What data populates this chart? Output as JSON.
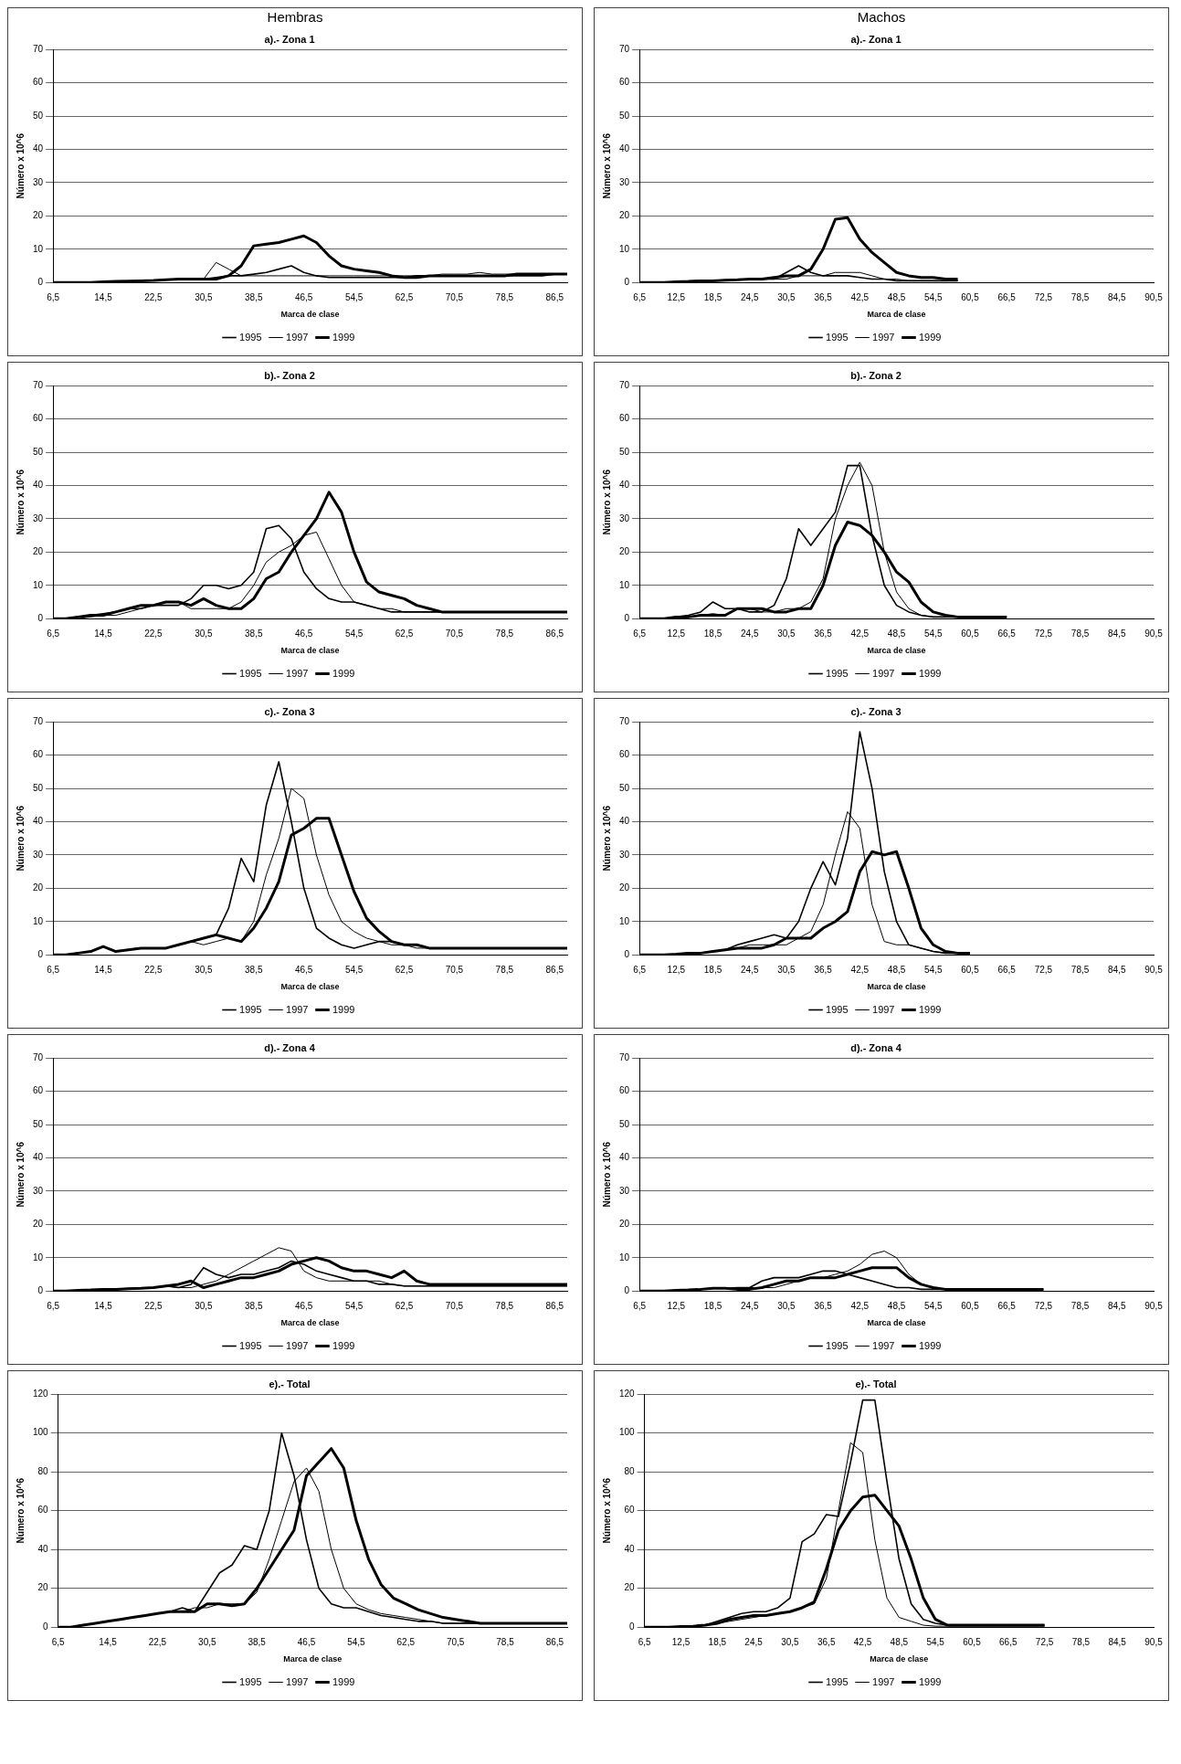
{
  "chart_data": [
    {
      "type": "line",
      "title": "a).- Zona 1",
      "xlabel": "Marca de clase",
      "ylabel": "Número x 10^6",
      "annotations": [
        "Hembras"
      ],
      "legend": "bottom",
      "grid": "y",
      "ylim": [
        0,
        70
      ],
      "yticks": [
        0,
        10,
        20,
        30,
        40,
        50,
        60,
        70
      ],
      "categories": [
        "6,5",
        null,
        null,
        null,
        "14,5",
        null,
        null,
        null,
        "22,5",
        null,
        null,
        null,
        "30,5",
        null,
        null,
        null,
        "38,5",
        null,
        null,
        null,
        "46,5",
        null,
        null,
        null,
        "54,5",
        null,
        null,
        null,
        "62,5",
        null,
        null,
        null,
        "70,5",
        null,
        null,
        null,
        "78,5",
        null,
        null,
        null,
        "86,5",
        null
      ],
      "series": [
        {
          "name": "1995",
          "color": "#000000",
          "values": [
            0,
            0,
            0,
            0,
            0.2,
            0.3,
            0.4,
            0.5,
            0.6,
            0.8,
            1,
            1,
            1,
            1.5,
            2,
            2,
            2.5,
            3,
            4,
            5,
            3,
            2,
            1.5,
            1.5,
            1.5,
            1.5,
            1.5,
            1.5,
            1.5,
            2,
            2,
            2,
            2,
            2,
            2,
            2,
            2,
            2,
            2,
            2,
            2.5,
            2.5
          ]
        },
        {
          "name": "1997",
          "color": "#000000",
          "values": [
            0,
            0,
            0,
            0,
            0.2,
            0.3,
            0.4,
            0.5,
            0.6,
            0.8,
            1,
            1,
            1,
            6,
            4,
            2,
            2,
            2,
            2,
            2,
            2,
            2,
            2,
            2,
            2,
            2,
            2,
            2,
            2,
            2,
            2,
            2.5,
            2.5,
            2.5,
            3,
            2.5,
            2.5,
            2.5,
            2.5,
            2.5,
            2.5,
            2.5
          ]
        },
        {
          "name": "1999",
          "color": "#000000",
          "values": [
            0,
            0,
            0,
            0,
            0.2,
            0.3,
            0.4,
            0.5,
            0.6,
            0.8,
            1,
            1,
            1,
            1,
            2,
            5,
            11,
            11.5,
            12,
            13,
            14,
            12,
            8,
            5,
            4,
            3.5,
            3,
            2,
            1.5,
            1.5,
            2,
            2,
            2,
            2,
            2,
            2,
            2,
            2.5,
            2.5,
            2.5,
            2.5,
            2.5
          ]
        }
      ]
    },
    {
      "type": "line",
      "title": "a).- Zona 1",
      "xlabel": "Marca de clase",
      "ylabel": "Número x 10^6",
      "annotations": [
        "Machos"
      ],
      "legend": "bottom",
      "grid": "y",
      "ylim": [
        0,
        70
      ],
      "yticks": [
        0,
        10,
        20,
        30,
        40,
        50,
        60,
        70
      ],
      "categories": [
        "6,5",
        null,
        null,
        "12,5",
        null,
        null,
        "18,5",
        null,
        null,
        "24,5",
        null,
        null,
        "30,5",
        null,
        null,
        "36,5",
        null,
        null,
        "42,5",
        null,
        null,
        "48,5",
        null,
        null,
        "54,5",
        null,
        null,
        "60,5",
        null,
        null,
        "66,5",
        null,
        null,
        "72,5",
        null,
        null,
        "78,5",
        null,
        null,
        "84,5",
        null,
        null,
        "90,5"
      ],
      "series": [
        {
          "name": "1995",
          "color": "#000000",
          "values": [
            0,
            0,
            0,
            0.2,
            0.3,
            0.5,
            0.5,
            0.7,
            0.8,
            1,
            1,
            1,
            3,
            5,
            3,
            2,
            2,
            2,
            1.5,
            1,
            1,
            0.5,
            0.5,
            0.5,
            0.5,
            0.5,
            0.5,
            null,
            null,
            null,
            null,
            null,
            null,
            null,
            null,
            null,
            null,
            null,
            null,
            null,
            null,
            null,
            null
          ]
        },
        {
          "name": "1997",
          "color": "#000000",
          "values": [
            0,
            0,
            0,
            0.2,
            0.3,
            0.5,
            0.5,
            0.7,
            0.8,
            1,
            1,
            1,
            1,
            2,
            2,
            2,
            3,
            3,
            3,
            2,
            1,
            1,
            0.5,
            0.5,
            0.5,
            0.5,
            0.5,
            null,
            null,
            null,
            null,
            null,
            null,
            null,
            null,
            null,
            null,
            null,
            null,
            null,
            null,
            null,
            null
          ]
        },
        {
          "name": "1999",
          "color": "#000000",
          "values": [
            0,
            0,
            0,
            0.2,
            0.3,
            0.5,
            0.5,
            0.7,
            0.8,
            1,
            1,
            1.5,
            2,
            2,
            4,
            10,
            19,
            19.5,
            13,
            9,
            6,
            3,
            2,
            1.5,
            1.5,
            1,
            1,
            null,
            null,
            null,
            null,
            null,
            null,
            null,
            null,
            null,
            null,
            null,
            null,
            null,
            null,
            null,
            null
          ]
        }
      ]
    },
    {
      "type": "line",
      "title": "b).- Zona 2",
      "xlabel": "Marca de clase",
      "ylabel": "Número x 10^6",
      "legend": "bottom",
      "grid": "y",
      "ylim": [
        0,
        70
      ],
      "yticks": [
        0,
        10,
        20,
        30,
        40,
        50,
        60,
        70
      ],
      "categories": [
        "6,5",
        null,
        null,
        null,
        "14,5",
        null,
        null,
        null,
        "22,5",
        null,
        null,
        null,
        "30,5",
        null,
        null,
        null,
        "38,5",
        null,
        null,
        null,
        "46,5",
        null,
        null,
        null,
        "54,5",
        null,
        null,
        null,
        "62,5",
        null,
        null,
        null,
        "70,5",
        null,
        null,
        null,
        "78,5",
        null,
        null,
        null,
        "86,5",
        null
      ],
      "series": [
        {
          "name": "1995",
          "color": "#000000",
          "values": [
            0,
            0,
            0.5,
            1,
            1.5,
            2,
            3,
            3,
            4,
            4,
            4,
            6,
            10,
            10,
            9,
            10,
            14,
            27,
            28,
            24,
            14,
            9,
            6,
            5,
            5,
            4,
            3,
            2,
            2,
            2,
            2,
            2,
            2,
            2,
            2,
            2,
            2,
            2,
            2,
            2,
            2,
            2
          ]
        },
        {
          "name": "1997",
          "color": "#000000",
          "values": [
            0,
            0,
            0,
            0.5,
            1,
            1,
            2,
            3,
            4,
            5,
            5,
            3,
            3,
            3,
            3,
            5,
            10,
            17,
            20,
            22,
            25,
            26,
            18,
            10,
            5,
            4,
            3,
            3,
            2,
            2,
            2,
            2,
            2,
            2,
            2,
            2,
            2,
            2,
            2,
            2,
            2,
            2
          ]
        },
        {
          "name": "1999",
          "color": "#000000",
          "values": [
            0,
            0,
            0.5,
            1,
            1,
            2,
            3,
            4,
            4,
            5,
            5,
            4,
            6,
            4,
            3,
            3,
            6,
            12,
            14,
            20,
            25,
            30,
            38,
            32,
            20,
            11,
            8,
            7,
            6,
            4,
            3,
            2,
            2,
            2,
            2,
            2,
            2,
            2,
            2,
            2,
            2,
            2
          ]
        }
      ]
    },
    {
      "type": "line",
      "title": "b).- Zona 2",
      "xlabel": "Marca de clase",
      "ylabel": "Número x 10^6",
      "legend": "bottom",
      "grid": "y",
      "ylim": [
        0,
        70
      ],
      "yticks": [
        0,
        10,
        20,
        30,
        40,
        50,
        60,
        70
      ],
      "categories": [
        "6,5",
        null,
        null,
        "12,5",
        null,
        null,
        "18,5",
        null,
        null,
        "24,5",
        null,
        null,
        "30,5",
        null,
        null,
        "36,5",
        null,
        null,
        "42,5",
        null,
        null,
        "48,5",
        null,
        null,
        "54,5",
        null,
        null,
        "60,5",
        null,
        null,
        "66,5",
        null,
        null,
        "72,5",
        null,
        null,
        "78,5",
        null,
        null,
        "84,5",
        null,
        null,
        "90,5"
      ],
      "series": [
        {
          "name": "1995",
          "color": "#000000",
          "values": [
            0,
            0,
            0,
            0.5,
            1,
            2,
            5,
            3,
            3,
            2,
            2,
            4,
            12,
            27,
            22,
            27,
            32,
            46,
            46,
            25,
            10,
            4,
            2,
            1,
            0.5,
            0.5,
            0.5,
            0.5,
            0.5,
            0.5,
            0.5,
            null,
            null,
            null,
            null,
            null,
            null,
            null,
            null,
            null,
            null,
            null,
            null
          ]
        },
        {
          "name": "1997",
          "color": "#000000",
          "values": [
            0,
            0,
            0,
            0.5,
            0.5,
            1,
            1.5,
            1,
            3,
            3,
            2,
            2,
            3,
            3,
            5,
            12,
            30,
            40,
            47,
            40,
            20,
            8,
            3,
            1,
            0.5,
            0.5,
            0.5,
            0.5,
            0.5,
            0.5,
            0.5,
            null,
            null,
            null,
            null,
            null,
            null,
            null,
            null,
            null,
            null,
            null,
            null
          ]
        },
        {
          "name": "1999",
          "color": "#000000",
          "values": [
            0,
            0,
            0,
            0.5,
            0.5,
            1,
            1,
            1,
            3,
            3,
            3,
            2,
            2,
            3,
            3,
            10,
            22,
            29,
            28,
            25,
            20,
            14,
            11,
            5,
            2,
            1,
            0.5,
            0.5,
            0.5,
            0.5,
            0.5,
            null,
            null,
            null,
            null,
            null,
            null,
            null,
            null,
            null,
            null,
            null,
            null
          ]
        }
      ]
    },
    {
      "type": "line",
      "title": "c).- Zona 3",
      "xlabel": "Marca de clase",
      "ylabel": "Número x 10^6",
      "legend": "bottom",
      "grid": "y",
      "ylim": [
        0,
        70
      ],
      "yticks": [
        0,
        10,
        20,
        30,
        40,
        50,
        60,
        70
      ],
      "categories": [
        "6,5",
        null,
        null,
        null,
        "14,5",
        null,
        null,
        null,
        "22,5",
        null,
        null,
        null,
        "30,5",
        null,
        null,
        null,
        "38,5",
        null,
        null,
        null,
        "46,5",
        null,
        null,
        null,
        "54,5",
        null,
        null,
        null,
        "62,5",
        null,
        null,
        null,
        "70,5",
        null,
        null,
        null,
        "78,5",
        null,
        null,
        null,
        "86,5",
        null
      ],
      "series": [
        {
          "name": "1995",
          "color": "#000000",
          "values": [
            0,
            0,
            0.5,
            1,
            2.5,
            1,
            1.5,
            2,
            2,
            2,
            3,
            4,
            5,
            6,
            14,
            29,
            22,
            45,
            58,
            40,
            20,
            8,
            5,
            3,
            2,
            3,
            4,
            4,
            3,
            3,
            2,
            2,
            2,
            2,
            2,
            2,
            2,
            2,
            2,
            2,
            2,
            2
          ]
        },
        {
          "name": "1997",
          "color": "#000000",
          "values": [
            0,
            0,
            0.5,
            1,
            2.5,
            1,
            1.5,
            2,
            2,
            2,
            3,
            4,
            3,
            4,
            5,
            4,
            10,
            24,
            35,
            50,
            47,
            30,
            18,
            10,
            7,
            5,
            4,
            3,
            3,
            2,
            2,
            2,
            2,
            2,
            2,
            2,
            2,
            2,
            2,
            2,
            2,
            2
          ]
        },
        {
          "name": "1999",
          "color": "#000000",
          "values": [
            0,
            0,
            0.5,
            1,
            2.5,
            1,
            1.5,
            2,
            2,
            2,
            3,
            4,
            5,
            6,
            5,
            4,
            8,
            14,
            22,
            36,
            38,
            41,
            41,
            30,
            19,
            11,
            7,
            4,
            3,
            3,
            2,
            2,
            2,
            2,
            2,
            2,
            2,
            2,
            2,
            2,
            2,
            2
          ]
        }
      ]
    },
    {
      "type": "line",
      "title": "c).- Zona 3",
      "xlabel": "Marca de clase",
      "ylabel": "Número x 10^6",
      "legend": "bottom",
      "grid": "y",
      "ylim": [
        0,
        70
      ],
      "yticks": [
        0,
        10,
        20,
        30,
        40,
        50,
        60,
        70
      ],
      "categories": [
        "6,5",
        null,
        null,
        "12,5",
        null,
        null,
        "18,5",
        null,
        null,
        "24,5",
        null,
        null,
        "30,5",
        null,
        null,
        "36,5",
        null,
        null,
        "42,5",
        null,
        null,
        "48,5",
        null,
        null,
        "54,5",
        null,
        null,
        "60,5",
        null,
        null,
        "66,5",
        null,
        null,
        "72,5",
        null,
        null,
        "78,5",
        null,
        null,
        "84,5",
        null,
        null,
        "90,5"
      ],
      "series": [
        {
          "name": "1995",
          "color": "#000000",
          "values": [
            0,
            0,
            0,
            0.2,
            0.5,
            0.5,
            1,
            1.5,
            3,
            4,
            5,
            6,
            5,
            10,
            20,
            28,
            21,
            35,
            67,
            50,
            25,
            10,
            3,
            2,
            1,
            0.5,
            0.5,
            0.5,
            null,
            null,
            null,
            null,
            null,
            null,
            null,
            null,
            null,
            null,
            null,
            null,
            null,
            null,
            null
          ]
        },
        {
          "name": "1997",
          "color": "#000000",
          "values": [
            0,
            0,
            0,
            0.2,
            0.5,
            0.5,
            1,
            1.5,
            2,
            3,
            3,
            3,
            3,
            5,
            7,
            15,
            30,
            43,
            38,
            15,
            4,
            3,
            3,
            2,
            1,
            0.5,
            0.5,
            0.5,
            null,
            null,
            null,
            null,
            null,
            null,
            null,
            null,
            null,
            null,
            null,
            null,
            null,
            null,
            null
          ]
        },
        {
          "name": "1999",
          "color": "#000000",
          "values": [
            0,
            0,
            0,
            0.2,
            0.5,
            0.5,
            1,
            1.5,
            2,
            2,
            2,
            3,
            5,
            5,
            5,
            8,
            10,
            13,
            25,
            31,
            30,
            31,
            20,
            8,
            3,
            1,
            0.5,
            0.5,
            null,
            null,
            null,
            null,
            null,
            null,
            null,
            null,
            null,
            null,
            null,
            null,
            null,
            null,
            null
          ]
        }
      ]
    },
    {
      "type": "line",
      "title": "d).- Zona 4",
      "xlabel": "Marca de clase",
      "ylabel": "Número x 10^6",
      "legend": "bottom",
      "grid": "y",
      "ylim": [
        0,
        70
      ],
      "yticks": [
        0,
        10,
        20,
        30,
        40,
        50,
        60,
        70
      ],
      "categories": [
        "6,5",
        null,
        null,
        null,
        "14,5",
        null,
        null,
        null,
        "22,5",
        null,
        null,
        null,
        "30,5",
        null,
        null,
        null,
        "38,5",
        null,
        null,
        null,
        "46,5",
        null,
        null,
        null,
        "54,5",
        null,
        null,
        null,
        "62,5",
        null,
        null,
        null,
        "70,5",
        null,
        null,
        null,
        "78,5",
        null,
        null,
        null,
        "86,5",
        null
      ],
      "series": [
        {
          "name": "1995",
          "color": "#000000",
          "values": [
            0,
            0,
            0.2,
            0.3,
            0.5,
            0.5,
            0.7,
            0.8,
            1,
            1.5,
            1,
            2,
            7,
            5,
            4,
            5,
            5,
            6,
            7,
            9,
            8,
            6,
            5,
            4,
            3,
            3,
            2,
            2,
            1.5,
            1.5,
            1.5,
            1.5,
            1.5,
            1.5,
            1.5,
            1.5,
            1.5,
            1.5,
            1.5,
            1.5,
            1.5,
            1.5
          ]
        },
        {
          "name": "1997",
          "color": "#000000",
          "values": [
            0,
            0,
            0.2,
            0.3,
            0.5,
            0.5,
            0.7,
            0.8,
            1,
            1.5,
            1,
            1,
            2,
            3,
            5,
            7,
            9,
            11,
            13,
            12,
            6,
            4,
            3,
            3,
            3,
            3,
            3,
            2,
            1.5,
            1.5,
            1.5,
            1.5,
            1.5,
            1.5,
            1.5,
            1.5,
            1.5,
            1.5,
            1.5,
            1.5,
            1.5,
            1.5
          ]
        },
        {
          "name": "1999",
          "color": "#000000",
          "values": [
            0,
            0,
            0.2,
            0.3,
            0.5,
            0.5,
            0.7,
            0.8,
            1,
            1.5,
            2,
            3,
            1,
            2,
            3,
            4,
            4,
            5,
            6,
            8,
            9,
            10,
            9,
            7,
            6,
            6,
            5,
            4,
            6,
            3,
            2,
            2,
            2,
            2,
            2,
            2,
            2,
            2,
            2,
            2,
            2,
            2
          ]
        }
      ]
    },
    {
      "type": "line",
      "title": "d).- Zona 4",
      "xlabel": "Marca de clase",
      "ylabel": "Número x 10^6",
      "legend": "bottom",
      "grid": "y",
      "ylim": [
        0,
        70
      ],
      "yticks": [
        0,
        10,
        20,
        30,
        40,
        50,
        60,
        70
      ],
      "categories": [
        "6,5",
        null,
        null,
        "12,5",
        null,
        null,
        "18,5",
        null,
        null,
        "24,5",
        null,
        null,
        "30,5",
        null,
        null,
        "36,5",
        null,
        null,
        "42,5",
        null,
        null,
        "48,5",
        null,
        null,
        "54,5",
        null,
        null,
        "60,5",
        null,
        null,
        "66,5",
        null,
        null,
        "72,5",
        null,
        null,
        "78,5",
        null,
        null,
        "84,5",
        null,
        null,
        "90,5"
      ],
      "series": [
        {
          "name": "1995",
          "color": "#000000",
          "values": [
            0,
            0,
            0,
            0.2,
            0.3,
            0.5,
            0.8,
            0.8,
            1,
            1,
            3,
            4,
            4,
            4,
            5,
            6,
            6,
            5,
            4,
            3,
            2,
            1,
            1,
            0.5,
            0.5,
            0.5,
            0.5,
            0.5,
            0.5,
            0.5,
            0.5,
            0.5,
            0.5,
            0.5,
            null,
            null,
            null,
            null,
            null,
            null,
            null,
            null,
            null
          ]
        },
        {
          "name": "1997",
          "color": "#000000",
          "values": [
            0,
            0,
            0,
            0.2,
            0.3,
            0.5,
            0.8,
            0.8,
            0.5,
            1,
            1,
            1,
            2,
            3,
            4,
            4,
            5,
            6,
            8,
            11,
            12,
            10,
            5,
            2,
            1,
            0.5,
            0.5,
            0.5,
            0.5,
            0.5,
            0.5,
            0.5,
            0.5,
            0.5,
            null,
            null,
            null,
            null,
            null,
            null,
            null,
            null,
            null
          ]
        },
        {
          "name": "1999",
          "color": "#000000",
          "values": [
            0,
            0,
            0,
            0.2,
            0.3,
            0.5,
            0.8,
            0.8,
            0.5,
            0.5,
            1,
            2,
            3,
            3,
            4,
            4,
            4,
            5,
            6,
            7,
            7,
            7,
            4,
            2,
            1,
            0.5,
            0.5,
            0.5,
            0.5,
            0.5,
            0.5,
            0.5,
            0.5,
            0.5,
            null,
            null,
            null,
            null,
            null,
            null,
            null,
            null,
            null
          ]
        }
      ]
    },
    {
      "type": "line",
      "title": "e).- Total",
      "xlabel": "Marca de clase",
      "ylabel": "Número x 10^6",
      "legend": "bottom",
      "grid": "y",
      "ylim": [
        0,
        120
      ],
      "yticks": [
        0,
        20,
        40,
        60,
        80,
        100,
        120
      ],
      "categories": [
        "6,5",
        null,
        null,
        null,
        "14,5",
        null,
        null,
        null,
        "22,5",
        null,
        null,
        null,
        "30,5",
        null,
        null,
        null,
        "38,5",
        null,
        null,
        null,
        "46,5",
        null,
        null,
        null,
        "54,5",
        null,
        null,
        null,
        "62,5",
        null,
        null,
        null,
        "70,5",
        null,
        null,
        null,
        "78,5",
        null,
        null,
        null,
        "86,5",
        null
      ],
      "series": [
        {
          "name": "1995",
          "color": "#000000",
          "values": [
            0,
            0,
            1,
            2,
            3,
            4,
            5,
            6,
            7,
            8,
            10,
            8,
            18,
            28,
            32,
            42,
            40,
            60,
            100,
            78,
            45,
            20,
            12,
            10,
            10,
            8,
            6,
            5,
            4,
            3,
            3,
            2,
            2,
            2,
            2,
            2,
            2,
            2,
            2,
            2,
            2,
            2
          ]
        },
        {
          "name": "1997",
          "color": "#000000",
          "values": [
            0,
            0,
            1,
            2,
            3,
            4,
            5,
            6,
            7,
            8,
            8,
            10,
            10,
            12,
            12,
            12,
            18,
            35,
            55,
            75,
            82,
            70,
            40,
            20,
            12,
            9,
            7,
            6,
            5,
            4,
            3,
            2,
            2,
            2,
            2,
            2,
            2,
            2,
            2,
            2,
            2,
            2
          ]
        },
        {
          "name": "1999",
          "color": "#000000",
          "values": [
            0,
            0,
            1,
            2,
            3,
            4,
            5,
            6,
            7,
            8,
            8,
            8,
            12,
            12,
            11,
            12,
            20,
            30,
            40,
            50,
            78,
            85,
            92,
            82,
            55,
            35,
            22,
            15,
            12,
            9,
            7,
            5,
            4,
            3,
            2,
            2,
            2,
            2,
            2,
            2,
            2,
            2
          ]
        }
      ]
    },
    {
      "type": "line",
      "title": "e).- Total",
      "xlabel": "Marca de clase",
      "ylabel": "Número x 10^6",
      "legend": "bottom",
      "grid": "y",
      "ylim": [
        0,
        120
      ],
      "yticks": [
        0,
        20,
        40,
        60,
        80,
        100,
        120
      ],
      "categories": [
        "6,5",
        null,
        null,
        "12,5",
        null,
        null,
        "18,5",
        null,
        null,
        "24,5",
        null,
        null,
        "30,5",
        null,
        null,
        "36,5",
        null,
        null,
        "42,5",
        null,
        null,
        "48,5",
        null,
        null,
        "54,5",
        null,
        null,
        "60,5",
        null,
        null,
        "66,5",
        null,
        null,
        "72,5",
        null,
        null,
        "78,5",
        null,
        null,
        "84,5",
        null,
        null,
        "90,5"
      ],
      "series": [
        {
          "name": "1995",
          "color": "#000000",
          "values": [
            0,
            0,
            0,
            0.3,
            0.5,
            1,
            3,
            5,
            7,
            8,
            8,
            10,
            15,
            44,
            48,
            58,
            57,
            85,
            117,
            117,
            75,
            35,
            12,
            4,
            2,
            1,
            1,
            1,
            1,
            1,
            1,
            1,
            1,
            1,
            null,
            null,
            null,
            null,
            null,
            null,
            null,
            null,
            null
          ]
        },
        {
          "name": "1997",
          "color": "#000000",
          "values": [
            0,
            0,
            0,
            0.3,
            0.5,
            1,
            2,
            3,
            4,
            5,
            6,
            7,
            8,
            10,
            12,
            25,
            60,
            95,
            90,
            45,
            15,
            5,
            3,
            1,
            0.5,
            0.5,
            0.5,
            0.5,
            0.5,
            0.5,
            0.5,
            0.5,
            0.5,
            0.5,
            null,
            null,
            null,
            null,
            null,
            null,
            null,
            null,
            null
          ]
        },
        {
          "name": "1999",
          "color": "#000000",
          "values": [
            0,
            0,
            0,
            0.3,
            0.5,
            1,
            2,
            4,
            5,
            6,
            6,
            7,
            8,
            10,
            13,
            30,
            50,
            60,
            67,
            68,
            60,
            52,
            35,
            15,
            4,
            1,
            1,
            1,
            1,
            1,
            1,
            1,
            1,
            1,
            null,
            null,
            null,
            null,
            null,
            null,
            null,
            null,
            null
          ]
        }
      ]
    }
  ]
}
